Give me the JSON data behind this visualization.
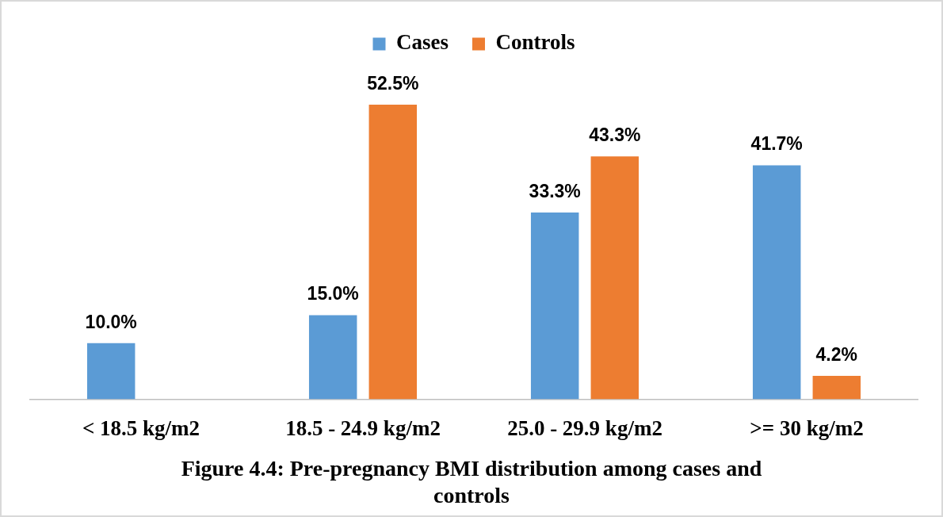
{
  "chart_data": {
    "type": "bar",
    "title": "Figure 4.4: Pre-pregnancy BMI distribution among cases and controls",
    "categories": [
      "< 18.5 kg/m2",
      "18.5 - 24.9 kg/m2",
      "25.0 - 29.9 kg/m2",
      ">= 30 kg/m2"
    ],
    "legend": "top",
    "series": [
      {
        "name": "Cases",
        "color": "#5b9bd5",
        "values": [
          10.0,
          15.0,
          33.3,
          41.7
        ],
        "value_labels": [
          "10.0%",
          "15.0%",
          "33.3%",
          "41.7%"
        ]
      },
      {
        "name": "Controls",
        "color": "#ed7d31",
        "values": [
          null,
          52.5,
          43.3,
          4.2
        ],
        "value_labels": [
          null,
          "52.5%",
          "43.3%",
          "4.2%"
        ]
      }
    ]
  }
}
